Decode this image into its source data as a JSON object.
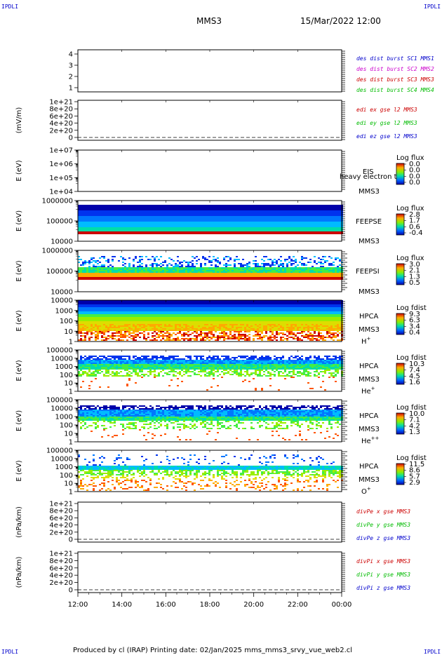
{
  "header": {
    "corner_left_top": "IPDLI",
    "corner_right_top": "IPDLI",
    "corner_left_bottom": "IPDLI",
    "corner_right_bottom": "IPDLI",
    "spacecraft": "MMS3",
    "datetime": "15/Mar/2022 12:00"
  },
  "footer": {
    "text": "Produced by cl (IRAP)   Printing date: 02/Jan/2025   mms_mms3_srvy_vue_web2.cl"
  },
  "colors": {
    "blue": "#0000cc",
    "magenta": "#cc00cc",
    "red": "#cc0000",
    "green": "#00bb00"
  },
  "chart_data": {
    "type": "heatmap",
    "x_axis": {
      "ticks": [
        "12:00",
        "14:00",
        "16:00",
        "18:00",
        "20:00",
        "22:00",
        "00:00"
      ],
      "range_hours": [
        12,
        24
      ]
    },
    "panels": [
      {
        "id": "dist",
        "kind": "line",
        "ylabel": "",
        "yticks": [
          "4",
          "3",
          "2",
          "1"
        ],
        "legend": [
          {
            "text": "des dist burst SC1 MMS1",
            "color": "#0000cc"
          },
          {
            "text": "des dist burst SC2 MMS2",
            "color": "#cc00cc"
          },
          {
            "text": "des dist burst SC3 MMS3",
            "color": "#cc0000"
          },
          {
            "text": "des dist burst SC4 MMS4",
            "color": "#00bb00"
          }
        ]
      },
      {
        "id": "edi",
        "kind": "line",
        "ylabel": "(mV/m)",
        "yticks": [
          "1e+21",
          "8e+20",
          "6e+20",
          "4e+20",
          "2e+20",
          "0"
        ],
        "legend": [
          {
            "text": "edi ex gse l2 MMS3",
            "color": "#cc0000"
          },
          {
            "text": "edi ey gse l2 MMS3",
            "color": "#00bb00"
          },
          {
            "text": "edi ez gse l2 MMS3",
            "color": "#0000cc"
          }
        ]
      },
      {
        "id": "eis",
        "kind": "spectrogram",
        "ylabel": "E (eV)",
        "yticks": [
          "1e+07",
          "1e+06",
          "1e+05",
          "1e+04"
        ],
        "labels": [
          "EIS",
          "heavy electron to",
          "MMS3"
        ],
        "colorbar": {
          "title": "Log flux",
          "ticks": [
            "0.0",
            "0.0",
            "0.0",
            "0.0"
          ]
        }
      },
      {
        "id": "feepse",
        "kind": "spectrogram",
        "ylabel": "E (eV)",
        "yticks": [
          "1000000",
          "100000",
          "10000"
        ],
        "labels": [
          "FEEPSE",
          "MMS3"
        ],
        "colorbar": {
          "title": "Log flux",
          "ticks": [
            "2.8",
            "1.7",
            "0.6",
            "-0.4"
          ]
        }
      },
      {
        "id": "feepsi",
        "kind": "spectrogram",
        "ylabel": "E (eV)",
        "yticks": [
          "1000000",
          "100000",
          "10000"
        ],
        "labels": [
          "FEEPSI",
          "MMS3"
        ],
        "colorbar": {
          "title": "Log flux",
          "ticks": [
            "3.0",
            "2.1",
            "1.3",
            "0.5"
          ]
        }
      },
      {
        "id": "hpca_h",
        "kind": "spectrogram",
        "ylabel": "E (eV)",
        "yticks": [
          "10000",
          "1000",
          "100",
          "10",
          "1"
        ],
        "labels": [
          "HPCA",
          "MMS3"
        ],
        "species": "H",
        "species_sup": "+",
        "colorbar": {
          "title": "Log fdist",
          "ticks": [
            "9.3",
            "6.3",
            "3.4",
            "0.4"
          ]
        }
      },
      {
        "id": "hpca_he",
        "kind": "spectrogram",
        "ylabel": "E (eV)",
        "yticks": [
          "100000",
          "10000",
          "1000",
          "100",
          "10",
          "1"
        ],
        "labels": [
          "HPCA",
          "MMS3"
        ],
        "species": "He",
        "species_sup": "+",
        "colorbar": {
          "title": "Log fdist",
          "ticks": [
            "10.3",
            "7.4",
            "4.5",
            "1.6"
          ]
        }
      },
      {
        "id": "hpca_he2",
        "kind": "spectrogram",
        "ylabel": "E (eV)",
        "yticks": [
          "100000",
          "10000",
          "1000",
          "100",
          "10",
          "1"
        ],
        "labels": [
          "HPCA",
          "MMS3"
        ],
        "species": "He",
        "species_sup": "++",
        "colorbar": {
          "title": "Log fdist",
          "ticks": [
            "10.0",
            "7.1",
            "4.2",
            "1.3"
          ]
        }
      },
      {
        "id": "hpca_o",
        "kind": "spectrogram",
        "ylabel": "E (eV)",
        "yticks": [
          "100000",
          "10000",
          "1000",
          "100",
          "10",
          "1"
        ],
        "labels": [
          "HPCA",
          "MMS3"
        ],
        "species": "O",
        "species_sup": "+",
        "colorbar": {
          "title": "Log fdist",
          "ticks": [
            "11.5",
            "8.6",
            "5.7",
            "2.9"
          ]
        }
      },
      {
        "id": "divpe",
        "kind": "line",
        "ylabel": "(nPa/km)",
        "yticks": [
          "1e+21",
          "8e+20",
          "6e+20",
          "4e+20",
          "2e+20",
          "0"
        ],
        "legend": [
          {
            "text": "divPe x gse MMS3",
            "color": "#cc0000"
          },
          {
            "text": "divPe y gse MMS3",
            "color": "#00bb00"
          },
          {
            "text": "divPe z gse MMS3",
            "color": "#0000cc"
          }
        ]
      },
      {
        "id": "divpi",
        "kind": "line",
        "ylabel": "(nPa/km)",
        "yticks": [
          "1e+21",
          "8e+20",
          "6e+20",
          "4e+20",
          "2e+20",
          "0"
        ],
        "legend": [
          {
            "text": "divPi x gse MMS3",
            "color": "#cc0000"
          },
          {
            "text": "divPi y gse MMS3",
            "color": "#00bb00"
          },
          {
            "text": "divPi z gse MMS3",
            "color": "#0000cc"
          }
        ]
      }
    ]
  }
}
